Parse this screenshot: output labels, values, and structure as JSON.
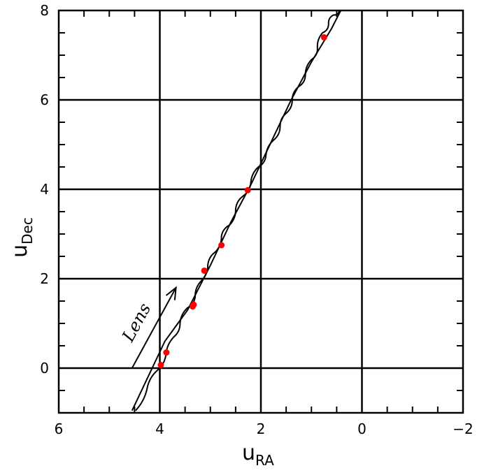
{
  "chart_data": {
    "type": "line",
    "xlabel": "u",
    "xlabel_sub": "RA",
    "ylabel": "u",
    "ylabel_sub": "Dec",
    "xlim": [
      6,
      -2
    ],
    "ylim": [
      -1,
      8
    ],
    "xticks": [
      6,
      4,
      2,
      0,
      -2
    ],
    "xtick_labels": [
      "6",
      "4",
      "2",
      "0",
      "−2"
    ],
    "yticks": [
      0,
      2,
      4,
      6,
      8
    ],
    "ytick_labels": [
      "0",
      "2",
      "4",
      "6",
      "8"
    ],
    "grid": true,
    "grid_x": [
      4,
      2,
      0
    ],
    "grid_y": [
      0,
      2,
      4,
      6
    ],
    "series": [
      {
        "style": "smooth",
        "x": [
          4.55,
          3.9,
          3.45,
          3.0,
          2.6,
          2.2,
          1.8,
          1.4,
          1.0,
          0.6,
          0.42
        ],
        "y": [
          -0.95,
          0.6,
          1.3,
          2.3,
          3.25,
          4.1,
          5.05,
          6.0,
          6.85,
          7.6,
          8.0
        ]
      },
      {
        "style": "wobbly",
        "x": [
          4.48,
          4.25,
          4.05,
          3.88,
          3.72,
          3.6,
          3.45,
          3.3,
          3.18,
          3.05,
          2.9,
          2.78,
          2.62,
          2.5,
          2.35,
          2.2,
          2.05,
          1.9,
          1.75,
          1.62,
          1.5,
          1.38,
          1.25,
          1.12,
          1.0,
          0.88,
          0.78,
          0.66,
          0.56,
          0.45
        ],
        "y": [
          -0.95,
          -0.45,
          -0.05,
          0.3,
          0.7,
          1.0,
          1.35,
          1.6,
          1.95,
          2.3,
          2.6,
          2.95,
          3.2,
          3.55,
          3.85,
          4.15,
          4.5,
          4.75,
          5.1,
          5.4,
          5.7,
          6.0,
          6.3,
          6.55,
          6.9,
          7.15,
          7.5,
          7.7,
          7.9,
          8.0
        ]
      }
    ],
    "points": {
      "color": "#ff0000",
      "x": [
        3.98,
        3.87,
        3.33,
        3.35,
        3.12,
        2.78,
        2.26,
        0.75
      ],
      "y": [
        0.07,
        0.35,
        1.42,
        1.38,
        2.18,
        2.75,
        3.98,
        7.4
      ]
    },
    "annotation": {
      "text": "Lens",
      "arrow_from": [
        4.55,
        0.0
      ],
      "arrow_to": [
        3.68,
        1.8
      ]
    }
  }
}
